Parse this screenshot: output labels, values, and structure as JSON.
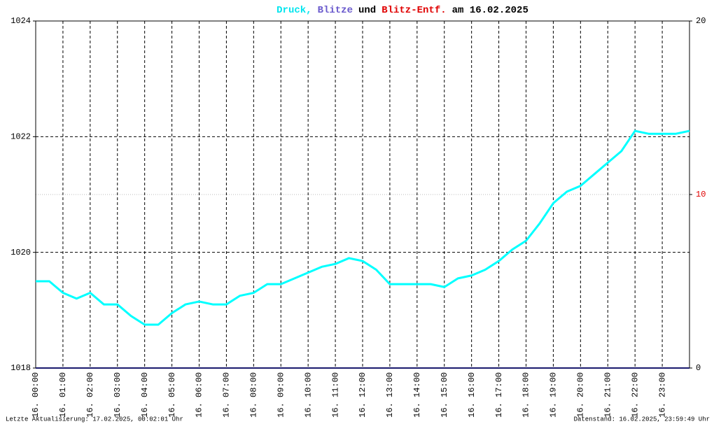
{
  "chart_data": {
    "type": "line",
    "title_parts": [
      {
        "text": "Druck,",
        "color": "#00e5ee"
      },
      {
        "text": "Blitze",
        "color": "#6a5acd"
      },
      {
        "text": "und",
        "color": "#000000"
      },
      {
        "text": "Blitz-Entf.",
        "color": "#e00000"
      },
      {
        "text": "am 16.02.2025",
        "color": "#000000"
      }
    ],
    "x": [
      0,
      0.5,
      1,
      1.5,
      2,
      2.5,
      3,
      3.5,
      4,
      4.5,
      5,
      5.5,
      6,
      6.5,
      7,
      7.5,
      8,
      8.5,
      9,
      9.5,
      10,
      10.5,
      11,
      11.5,
      12,
      12.5,
      13,
      13.5,
      14,
      14.5,
      15,
      15.5,
      16,
      16.5,
      17,
      17.5,
      18,
      18.5,
      19,
      19.5,
      20,
      20.5,
      21,
      21.5,
      22,
      22.5,
      23,
      23.5,
      24
    ],
    "series": [
      {
        "name": "Druck",
        "color": "#00ffff",
        "values": [
          1019.5,
          1019.5,
          1019.3,
          1019.2,
          1019.3,
          1019.1,
          1019.1,
          1018.9,
          1018.75,
          1018.75,
          1018.95,
          1019.1,
          1019.15,
          1019.1,
          1019.1,
          1019.25,
          1019.3,
          1019.45,
          1019.45,
          1019.55,
          1019.65,
          1019.75,
          1019.8,
          1019.9,
          1019.85,
          1019.7,
          1019.45,
          1019.45,
          1019.45,
          1019.45,
          1019.4,
          1019.55,
          1019.6,
          1019.7,
          1019.85,
          1020.05,
          1020.2,
          1020.5,
          1020.85,
          1021.05,
          1021.15,
          1021.35,
          1021.55,
          1021.75,
          1022.1,
          1022.05,
          1022.05,
          1022.05,
          1022.1
        ]
      }
    ],
    "xlim": [
      0,
      24
    ],
    "xticks": [
      {
        "value": 0,
        "label": "16. 00:00"
      },
      {
        "value": 1,
        "label": "16. 01:00"
      },
      {
        "value": 2,
        "label": "16. 02:00"
      },
      {
        "value": 3,
        "label": "16. 03:00"
      },
      {
        "value": 4,
        "label": "16. 04:00"
      },
      {
        "value": 5,
        "label": "16. 05:00"
      },
      {
        "value": 6,
        "label": "16. 06:00"
      },
      {
        "value": 7,
        "label": "16. 07:00"
      },
      {
        "value": 8,
        "label": "16. 08:00"
      },
      {
        "value": 9,
        "label": "16. 09:00"
      },
      {
        "value": 10,
        "label": "16. 10:00"
      },
      {
        "value": 11,
        "label": "16. 11:00"
      },
      {
        "value": 12,
        "label": "16. 12:00"
      },
      {
        "value": 13,
        "label": "16. 13:00"
      },
      {
        "value": 14,
        "label": "16. 14:00"
      },
      {
        "value": 15,
        "label": "16. 15:00"
      },
      {
        "value": 16,
        "label": "16. 16:00"
      },
      {
        "value": 17,
        "label": "16. 17:00"
      },
      {
        "value": 18,
        "label": "16. 18:00"
      },
      {
        "value": 19,
        "label": "16. 19:00"
      },
      {
        "value": 20,
        "label": "16. 20:00"
      },
      {
        "value": 21,
        "label": "16. 21:00"
      },
      {
        "value": 22,
        "label": "16. 22:00"
      },
      {
        "value": 23,
        "label": "16. 23:00"
      }
    ],
    "ylim": [
      1018,
      1024
    ],
    "yticks": [
      1018,
      1020,
      1022,
      1024
    ],
    "y2lim": [
      0,
      20
    ],
    "y2ticks": [
      0,
      10,
      20
    ],
    "grid": true,
    "footer_left": "Letzte Aktualisierung: 17.02.2025, 00:02:01 Uhr",
    "footer_right": "Datenstand: 16.02.2025, 23:59:49 Uhr"
  }
}
